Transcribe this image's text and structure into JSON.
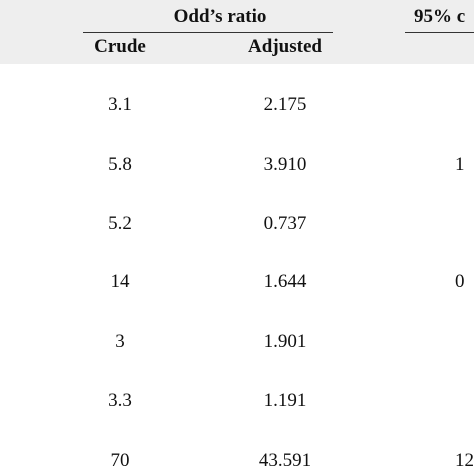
{
  "header": {
    "odds_ratio": "Odd’s ratio",
    "ci_partial": "95% c",
    "crude": "Crude",
    "adjusted": "Adjusted"
  },
  "rows": [
    {
      "crude": "3.1",
      "adjusted": "2.175",
      "ci": ""
    },
    {
      "crude": "5.8",
      "adjusted": "3.910",
      "ci": "1"
    },
    {
      "crude": "5.2",
      "adjusted": "0.737",
      "ci": ""
    },
    {
      "crude": "14",
      "adjusted": "1.644",
      "ci": "0"
    },
    {
      "crude": "3",
      "adjusted": "1.901",
      "ci": ""
    },
    {
      "crude": "3.3",
      "adjusted": "1.191",
      "ci": ""
    },
    {
      "crude": "70",
      "adjusted": "43.591",
      "ci": "12"
    }
  ]
}
